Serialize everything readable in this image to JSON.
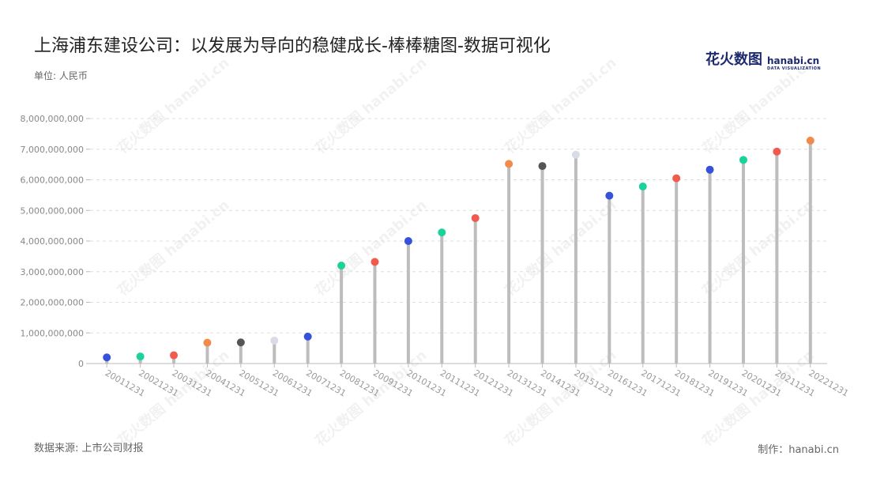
{
  "title": "上海浦东建设公司：以发展为导向的稳健成长-棒棒糖图-数据可视化",
  "logo": {
    "cn": "花火数图",
    "en": "hanabi.cn",
    "sub": "DATA VISUALIZATION"
  },
  "unit_label": "单位: 人民币",
  "source_label": "数据来源: 上市公司财报",
  "credit_label": "制作：hanabi.cn",
  "watermark_text": "花火数图 hanabi.cn",
  "chart_data": {
    "type": "lollipop",
    "title": "上海浦东建设公司：以发展为导向的稳健成长-棒棒糖图-数据可视化",
    "xlabel": "",
    "ylabel": "单位: 人民币",
    "ylim": [
      0,
      8000000000
    ],
    "yticks": [
      0,
      1000000000,
      2000000000,
      3000000000,
      4000000000,
      5000000000,
      6000000000,
      7000000000,
      8000000000
    ],
    "ytick_labels": [
      "0",
      "1,000,000,000",
      "2,000,000,000",
      "3,000,000,000",
      "4,000,000,000",
      "5,000,000,000",
      "6,000,000,000",
      "7,000,000,000",
      "8,000,000,000"
    ],
    "grid": true,
    "categories": [
      "20011231",
      "20021231",
      "20031231",
      "20041231",
      "20051231",
      "20061231",
      "20071231",
      "20081231",
      "20091231",
      "20101231",
      "20111231",
      "20121231",
      "20131231",
      "20141231",
      "20151231",
      "20161231",
      "20171231",
      "20181231",
      "20191231",
      "20201231",
      "20211231",
      "20221231"
    ],
    "values": [
      200000000,
      230000000,
      270000000,
      680000000,
      690000000,
      750000000,
      880000000,
      3200000000,
      3320000000,
      4000000000,
      4280000000,
      4750000000,
      6520000000,
      6450000000,
      6820000000,
      5480000000,
      5780000000,
      6050000000,
      6330000000,
      6650000000,
      6920000000,
      7280000000
    ],
    "colors": [
      "#3552d8",
      "#19d39a",
      "#f25a4e",
      "#f28a4a",
      "#555555",
      "#d9dbe6",
      "#3552d8",
      "#19d39a",
      "#f25a4e",
      "#3552d8",
      "#19d39a",
      "#f25a4e",
      "#f28a4a",
      "#555555",
      "#d9dbe6",
      "#3552d8",
      "#19d39a",
      "#f25a4e",
      "#3552d8",
      "#19d39a",
      "#f25a4e",
      "#f28a4a"
    ],
    "stem_color": "#bdbdbd"
  }
}
